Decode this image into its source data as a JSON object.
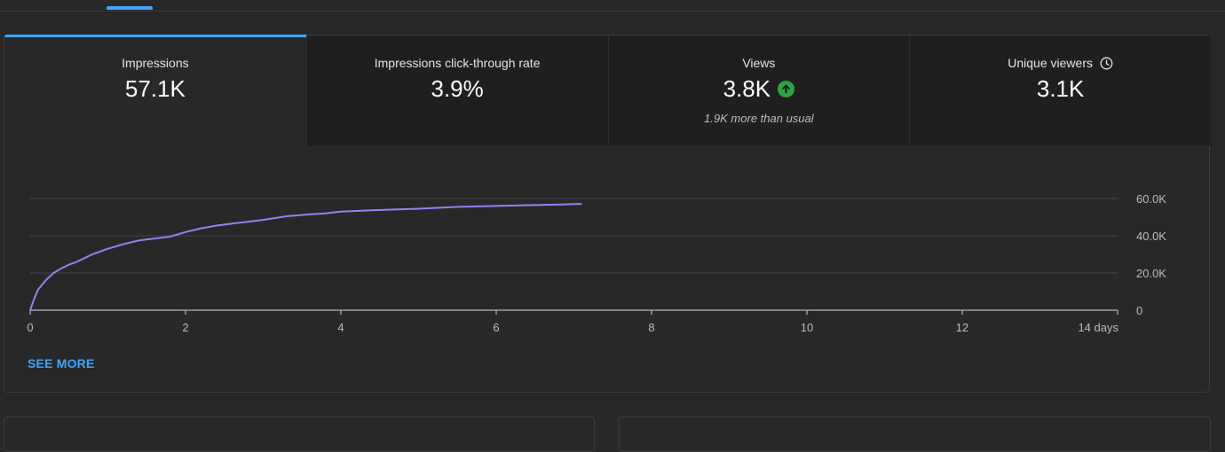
{
  "metrics": [
    {
      "label": "Impressions",
      "value": "57.1K",
      "active": true
    },
    {
      "label": "Impressions click-through rate",
      "value": "3.9%"
    },
    {
      "label": "Views",
      "value": "3.8K",
      "note": "1.9K more than usual",
      "trend_icon": "arrow-up-icon",
      "trend_color": "#2ba640"
    },
    {
      "label": "Unique viewers",
      "value": "3.1K",
      "info_icon": "clock-icon"
    }
  ],
  "chart_data": {
    "type": "line",
    "xlabel": "",
    "ylabel": "",
    "xlim": [
      0,
      14
    ],
    "ylim": [
      0,
      60000
    ],
    "x_ticks": [
      "0",
      "2",
      "4",
      "6",
      "8",
      "10",
      "12",
      "14 days"
    ],
    "y_ticks": [
      "0",
      "20.0K",
      "40.0K",
      "60.0K"
    ],
    "grid": true,
    "series": [
      {
        "color": "#8c86f2",
        "x": [
          0,
          0.05,
          0.1,
          0.2,
          0.3,
          0.4,
          0.5,
          0.6,
          0.7,
          0.8,
          0.9,
          1.0,
          1.2,
          1.4,
          1.6,
          1.8,
          2.0,
          2.2,
          2.4,
          2.6,
          2.8,
          3.0,
          3.3,
          3.6,
          3.8,
          4.0,
          4.3,
          4.6,
          5.0,
          5.5,
          6.0,
          6.5,
          7.0,
          7.1
        ],
        "y": [
          0,
          6000,
          11000,
          16000,
          20000,
          22500,
          24500,
          26000,
          28000,
          30000,
          31500,
          33000,
          35500,
          37500,
          38500,
          39500,
          42000,
          44000,
          45500,
          46500,
          47500,
          48500,
          50500,
          51500,
          52000,
          53000,
          53500,
          54000,
          54500,
          55500,
          56000,
          56500,
          57000,
          57100
        ]
      }
    ]
  },
  "see_more_label": "SEE MORE",
  "colors": {
    "accent": "#3ea6ff",
    "line": "#8c86f2",
    "positive": "#2ba640"
  }
}
